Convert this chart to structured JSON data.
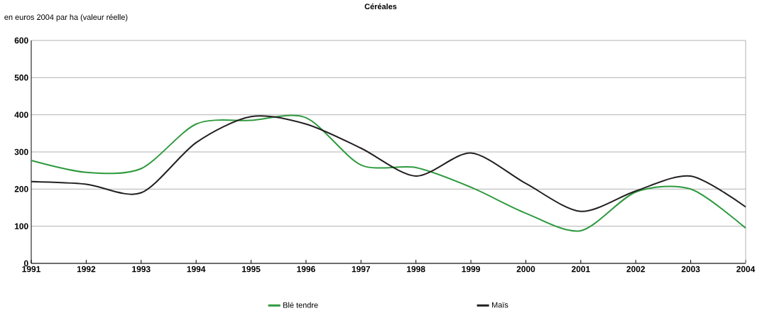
{
  "chart_data": {
    "type": "line",
    "title": "Céréales",
    "subtitle": "en euros 2004 par ha (valeur réelle)",
    "x": [
      1991,
      1992,
      1993,
      1994,
      1995,
      1996,
      1997,
      1998,
      1999,
      2000,
      2001,
      2002,
      2003,
      2004
    ],
    "series": [
      {
        "name": "Blé tendre",
        "color": "#2e9a3e",
        "values": [
          277,
          245,
          255,
          375,
          385,
          392,
          265,
          258,
          205,
          135,
          88,
          192,
          200,
          95
        ]
      },
      {
        "name": "Maïs",
        "color": "#231f20",
        "values": [
          220,
          213,
          190,
          325,
          395,
          375,
          310,
          235,
          297,
          215,
          140,
          195,
          235,
          152
        ]
      }
    ],
    "xlim": [
      1991,
      2004
    ],
    "xticks": [
      1991,
      1992,
      1993,
      1994,
      1995,
      1996,
      1997,
      1998,
      1999,
      2000,
      2001,
      2002,
      2003,
      2004
    ],
    "ylim": [
      0,
      600
    ],
    "yticks": [
      0,
      100,
      200,
      300,
      400,
      500,
      600
    ],
    "grid": "y",
    "legend": "bottom",
    "marker": "none",
    "line_style": "solid"
  }
}
